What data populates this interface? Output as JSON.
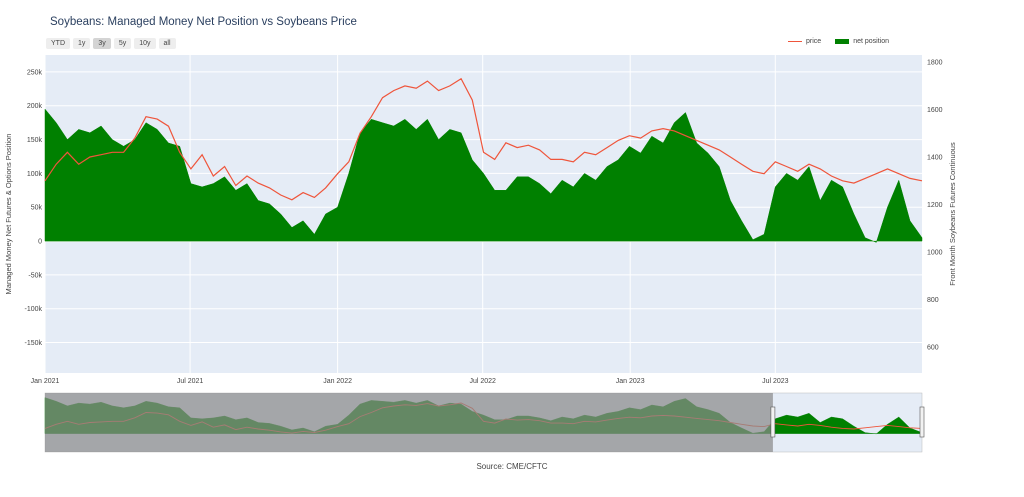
{
  "title": "Soybeans: Managed Money Net Position vs Soybeans Price",
  "range_buttons": [
    {
      "label": "YTD",
      "active": false
    },
    {
      "label": "1y",
      "active": false
    },
    {
      "label": "3y",
      "active": true
    },
    {
      "label": "5y",
      "active": false
    },
    {
      "label": "10y",
      "active": false
    },
    {
      "label": "all",
      "active": false
    }
  ],
  "legend": {
    "price_label": "price",
    "net_label": "net position"
  },
  "source": "Source: CME/CFTC",
  "colors": {
    "price": "#ef553b",
    "net": "#008000",
    "plot_bg": "#e5ecf6",
    "selector_shade": "#8a8a8a"
  },
  "chart_data": {
    "type": "area",
    "title": "Soybeans: Managed Money Net Position vs Soybeans Price",
    "xlabel": "",
    "ylabel": "Managed Money Net Futures & Options Position",
    "y2label": "Front Month Soybeans Futures Continuous",
    "x_range": [
      "2021-01-01",
      "2023-12-31"
    ],
    "ylim": [
      -195000,
      275000
    ],
    "y2lim": [
      490,
      1830
    ],
    "x_ticks": [
      {
        "label": "Jan 2021",
        "date": "2021-01-01"
      },
      {
        "label": "Jul 2021",
        "date": "2021-07-01"
      },
      {
        "label": "Jan 2022",
        "date": "2022-01-01"
      },
      {
        "label": "Jul 2022",
        "date": "2022-07-01"
      },
      {
        "label": "Jan 2023",
        "date": "2023-01-01"
      },
      {
        "label": "Jul 2023",
        "date": "2023-07-01"
      }
    ],
    "y_ticks": [
      {
        "label": "250k",
        "value": 250000
      },
      {
        "label": "200k",
        "value": 200000
      },
      {
        "label": "150k",
        "value": 150000
      },
      {
        "label": "100k",
        "value": 100000
      },
      {
        "label": "50k",
        "value": 50000
      },
      {
        "label": "0",
        "value": 0
      },
      {
        "label": "-50k",
        "value": -50000
      },
      {
        "label": "-100k",
        "value": -100000
      },
      {
        "label": "-150k",
        "value": -150000
      }
    ],
    "y2_ticks": [
      {
        "label": "1800",
        "value": 1800
      },
      {
        "label": "1600",
        "value": 1600
      },
      {
        "label": "1400",
        "value": 1400
      },
      {
        "label": "1200",
        "value": 1200
      },
      {
        "label": "1000",
        "value": 1000
      },
      {
        "label": "800",
        "value": 800
      },
      {
        "label": "600",
        "value": 600
      }
    ],
    "grid": true,
    "legend_position": "top-right",
    "series": [
      {
        "name": "net position",
        "axis": "left",
        "type": "area",
        "points": [
          [
            "2021-01-01",
            195000
          ],
          [
            "2021-01-15",
            175000
          ],
          [
            "2021-01-29",
            150000
          ],
          [
            "2021-02-12",
            165000
          ],
          [
            "2021-02-26",
            160000
          ],
          [
            "2021-03-12",
            170000
          ],
          [
            "2021-03-26",
            150000
          ],
          [
            "2021-04-09",
            140000
          ],
          [
            "2021-04-23",
            150000
          ],
          [
            "2021-05-07",
            175000
          ],
          [
            "2021-05-21",
            165000
          ],
          [
            "2021-06-04",
            145000
          ],
          [
            "2021-06-18",
            140000
          ],
          [
            "2021-07-02",
            85000
          ],
          [
            "2021-07-16",
            80000
          ],
          [
            "2021-07-30",
            85000
          ],
          [
            "2021-08-13",
            95000
          ],
          [
            "2021-08-27",
            75000
          ],
          [
            "2021-09-10",
            85000
          ],
          [
            "2021-09-24",
            60000
          ],
          [
            "2021-10-08",
            55000
          ],
          [
            "2021-10-22",
            40000
          ],
          [
            "2021-11-05",
            20000
          ],
          [
            "2021-11-19",
            30000
          ],
          [
            "2021-12-03",
            10000
          ],
          [
            "2021-12-17",
            40000
          ],
          [
            "2022-01-01",
            50000
          ],
          [
            "2022-01-15",
            100000
          ],
          [
            "2022-01-29",
            160000
          ],
          [
            "2022-02-12",
            180000
          ],
          [
            "2022-02-26",
            175000
          ],
          [
            "2022-03-12",
            170000
          ],
          [
            "2022-03-26",
            180000
          ],
          [
            "2022-04-09",
            165000
          ],
          [
            "2022-04-23",
            180000
          ],
          [
            "2022-05-07",
            150000
          ],
          [
            "2022-05-21",
            165000
          ],
          [
            "2022-06-04",
            160000
          ],
          [
            "2022-06-18",
            120000
          ],
          [
            "2022-07-02",
            100000
          ],
          [
            "2022-07-16",
            75000
          ],
          [
            "2022-07-30",
            75000
          ],
          [
            "2022-08-13",
            95000
          ],
          [
            "2022-08-27",
            95000
          ],
          [
            "2022-09-10",
            85000
          ],
          [
            "2022-09-24",
            70000
          ],
          [
            "2022-10-08",
            90000
          ],
          [
            "2022-10-22",
            80000
          ],
          [
            "2022-11-05",
            100000
          ],
          [
            "2022-11-19",
            90000
          ],
          [
            "2022-12-03",
            110000
          ],
          [
            "2022-12-17",
            120000
          ],
          [
            "2022-12-31",
            140000
          ],
          [
            "2023-01-14",
            130000
          ],
          [
            "2023-01-28",
            155000
          ],
          [
            "2023-02-11",
            145000
          ],
          [
            "2023-02-25",
            175000
          ],
          [
            "2023-03-11",
            190000
          ],
          [
            "2023-03-25",
            145000
          ],
          [
            "2023-04-08",
            130000
          ],
          [
            "2023-04-22",
            110000
          ],
          [
            "2023-05-06",
            60000
          ],
          [
            "2023-05-20",
            30000
          ],
          [
            "2023-06-03",
            2000
          ],
          [
            "2023-06-17",
            10000
          ],
          [
            "2023-07-01",
            80000
          ],
          [
            "2023-07-15",
            100000
          ],
          [
            "2023-07-29",
            90000
          ],
          [
            "2023-08-12",
            110000
          ],
          [
            "2023-08-26",
            60000
          ],
          [
            "2023-09-09",
            90000
          ],
          [
            "2023-09-23",
            80000
          ],
          [
            "2023-10-07",
            40000
          ],
          [
            "2023-10-21",
            5000
          ],
          [
            "2023-11-04",
            -2000
          ],
          [
            "2023-11-18",
            50000
          ],
          [
            "2023-12-02",
            90000
          ],
          [
            "2023-12-16",
            30000
          ],
          [
            "2023-12-31",
            5000
          ]
        ]
      },
      {
        "name": "price",
        "axis": "right",
        "type": "line",
        "points": [
          [
            "2021-01-01",
            1300
          ],
          [
            "2021-01-15",
            1370
          ],
          [
            "2021-01-29",
            1420
          ],
          [
            "2021-02-12",
            1370
          ],
          [
            "2021-02-26",
            1400
          ],
          [
            "2021-03-12",
            1410
          ],
          [
            "2021-03-26",
            1420
          ],
          [
            "2021-04-09",
            1420
          ],
          [
            "2021-04-23",
            1480
          ],
          [
            "2021-05-07",
            1570
          ],
          [
            "2021-05-21",
            1560
          ],
          [
            "2021-06-04",
            1530
          ],
          [
            "2021-06-18",
            1420
          ],
          [
            "2021-07-02",
            1350
          ],
          [
            "2021-07-16",
            1410
          ],
          [
            "2021-07-30",
            1320
          ],
          [
            "2021-08-13",
            1360
          ],
          [
            "2021-08-27",
            1280
          ],
          [
            "2021-09-10",
            1320
          ],
          [
            "2021-09-24",
            1290
          ],
          [
            "2021-10-08",
            1270
          ],
          [
            "2021-10-22",
            1240
          ],
          [
            "2021-11-05",
            1220
          ],
          [
            "2021-11-19",
            1250
          ],
          [
            "2021-12-03",
            1230
          ],
          [
            "2021-12-17",
            1270
          ],
          [
            "2022-01-01",
            1330
          ],
          [
            "2022-01-15",
            1380
          ],
          [
            "2022-01-29",
            1500
          ],
          [
            "2022-02-12",
            1570
          ],
          [
            "2022-02-26",
            1650
          ],
          [
            "2022-03-12",
            1680
          ],
          [
            "2022-03-26",
            1700
          ],
          [
            "2022-04-09",
            1690
          ],
          [
            "2022-04-23",
            1720
          ],
          [
            "2022-05-07",
            1680
          ],
          [
            "2022-05-21",
            1700
          ],
          [
            "2022-06-04",
            1730
          ],
          [
            "2022-06-18",
            1640
          ],
          [
            "2022-07-02",
            1420
          ],
          [
            "2022-07-16",
            1390
          ],
          [
            "2022-07-30",
            1460
          ],
          [
            "2022-08-13",
            1440
          ],
          [
            "2022-08-27",
            1450
          ],
          [
            "2022-09-10",
            1430
          ],
          [
            "2022-09-24",
            1390
          ],
          [
            "2022-10-08",
            1390
          ],
          [
            "2022-10-22",
            1380
          ],
          [
            "2022-11-05",
            1420
          ],
          [
            "2022-11-19",
            1410
          ],
          [
            "2022-12-03",
            1440
          ],
          [
            "2022-12-17",
            1470
          ],
          [
            "2022-12-31",
            1490
          ],
          [
            "2023-01-14",
            1480
          ],
          [
            "2023-01-28",
            1510
          ],
          [
            "2023-02-11",
            1520
          ],
          [
            "2023-02-25",
            1510
          ],
          [
            "2023-03-11",
            1490
          ],
          [
            "2023-03-25",
            1470
          ],
          [
            "2023-04-08",
            1450
          ],
          [
            "2023-04-22",
            1430
          ],
          [
            "2023-05-06",
            1400
          ],
          [
            "2023-05-20",
            1370
          ],
          [
            "2023-06-03",
            1340
          ],
          [
            "2023-06-17",
            1330
          ],
          [
            "2023-07-01",
            1380
          ],
          [
            "2023-07-15",
            1360
          ],
          [
            "2023-07-29",
            1340
          ],
          [
            "2023-08-12",
            1370
          ],
          [
            "2023-08-26",
            1350
          ],
          [
            "2023-09-09",
            1320
          ],
          [
            "2023-09-23",
            1300
          ],
          [
            "2023-10-07",
            1290
          ],
          [
            "2023-10-21",
            1310
          ],
          [
            "2023-11-04",
            1330
          ],
          [
            "2023-11-18",
            1350
          ],
          [
            "2023-12-02",
            1330
          ],
          [
            "2023-12-16",
            1310
          ],
          [
            "2023-12-31",
            1300
          ]
        ]
      }
    ]
  },
  "range_slider": {
    "selected_fraction": [
      0.83,
      1.0
    ]
  }
}
